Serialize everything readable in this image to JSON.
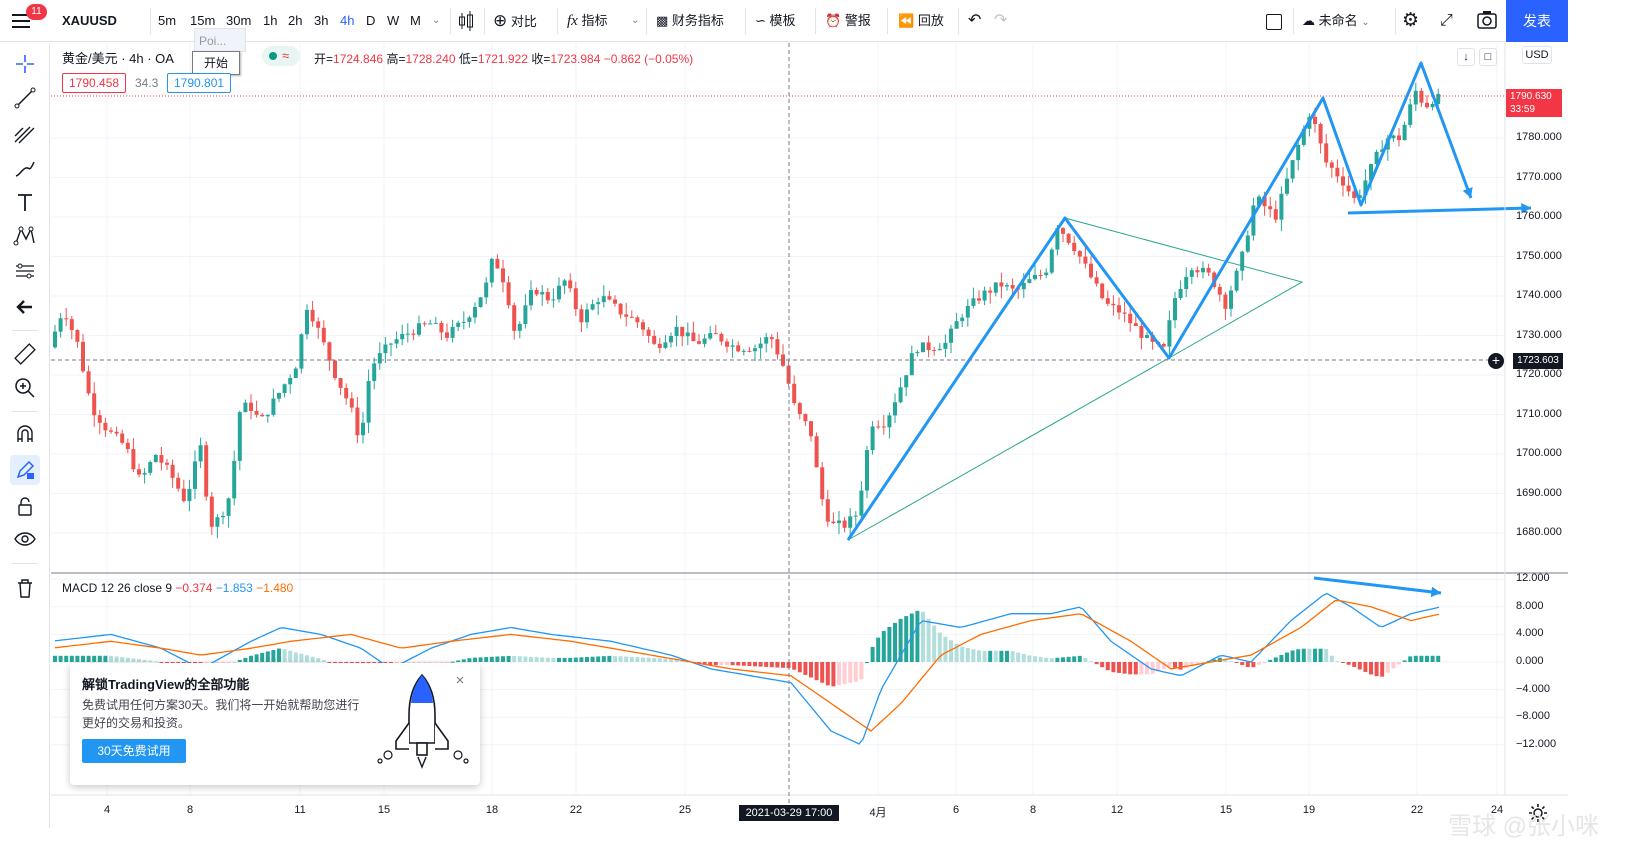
{
  "toolbar": {
    "notification_count": "11",
    "symbol": "XAUUSD",
    "intervals": [
      "5m",
      "15m",
      "30m",
      "1h",
      "2h",
      "3h",
      "4h",
      "D",
      "W",
      "M"
    ],
    "active_interval": "4h",
    "compare_label": "对比",
    "indicators_label": "指标",
    "financials_label": "财务指标",
    "templates_label": "模板",
    "alert_label": "警报",
    "replay_label": "回放",
    "layout_name": "未命名",
    "publish_label": "发表"
  },
  "left_tools": [
    "crosshair-icon",
    "trend-line-icon",
    "fib-icon",
    "brush-icon",
    "text-icon",
    "pattern-icon",
    "prediction-icon",
    "back-arrow-icon",
    "ruler-icon",
    "zoom-in-icon",
    "magnet-icon",
    "lock-drawing-icon",
    "lock-icon",
    "eye-icon",
    "trash-icon"
  ],
  "legend": {
    "title": "黄金/美元 · 4h · OA",
    "open_label": "开",
    "open": "1724.846",
    "high_label": "高",
    "high": "1728.240",
    "low_label": "低",
    "low": "1721.922",
    "close_label": "收",
    "close": "1723.984",
    "change": "−0.862 (−0.05%)",
    "sell_price": "1790.458",
    "spread": "34.3",
    "buy_price": "1790.801",
    "poi_tip": "Poi...",
    "start_button": "开始"
  },
  "price_axis": {
    "currency": "USD",
    "labels": [
      "1780.000",
      "1770.000",
      "1760.000",
      "1750.000",
      "1740.000",
      "1730.000",
      "1720.000",
      "1710.000",
      "1700.000",
      "1690.000",
      "1680.000"
    ],
    "last_price": "1790.630",
    "countdown": "33:59",
    "crosshair_price": "1723.603"
  },
  "macd": {
    "label": "MACD 12 26 close 9",
    "hist": "−0.374",
    "macd": "−1.853",
    "signal": "−1.480",
    "axis_labels": [
      "12.000",
      "8.000",
      "4.000",
      "0.000",
      "−4.000",
      "−8.000",
      "−12.000"
    ]
  },
  "time_axis": {
    "labels": [
      "4",
      "8",
      "11",
      "15",
      "18",
      "22",
      "25",
      "4月",
      "6",
      "8",
      "12",
      "15",
      "19",
      "22",
      "24"
    ],
    "crosshair_time": "2021-03-29  17:00"
  },
  "promo": {
    "title": "解锁TradingView的全部功能",
    "text": "免费试用任何方案30天。我们将一开始就帮助您进行更好的交易和投资。",
    "button": "30天免费试用"
  },
  "watermark": "雪球 @张小咪",
  "colors": {
    "up": "#26a69a",
    "down": "#ef5350",
    "accent": "#2962ff",
    "drawing": "#2196f3",
    "triangle": "#2ba58d"
  }
}
